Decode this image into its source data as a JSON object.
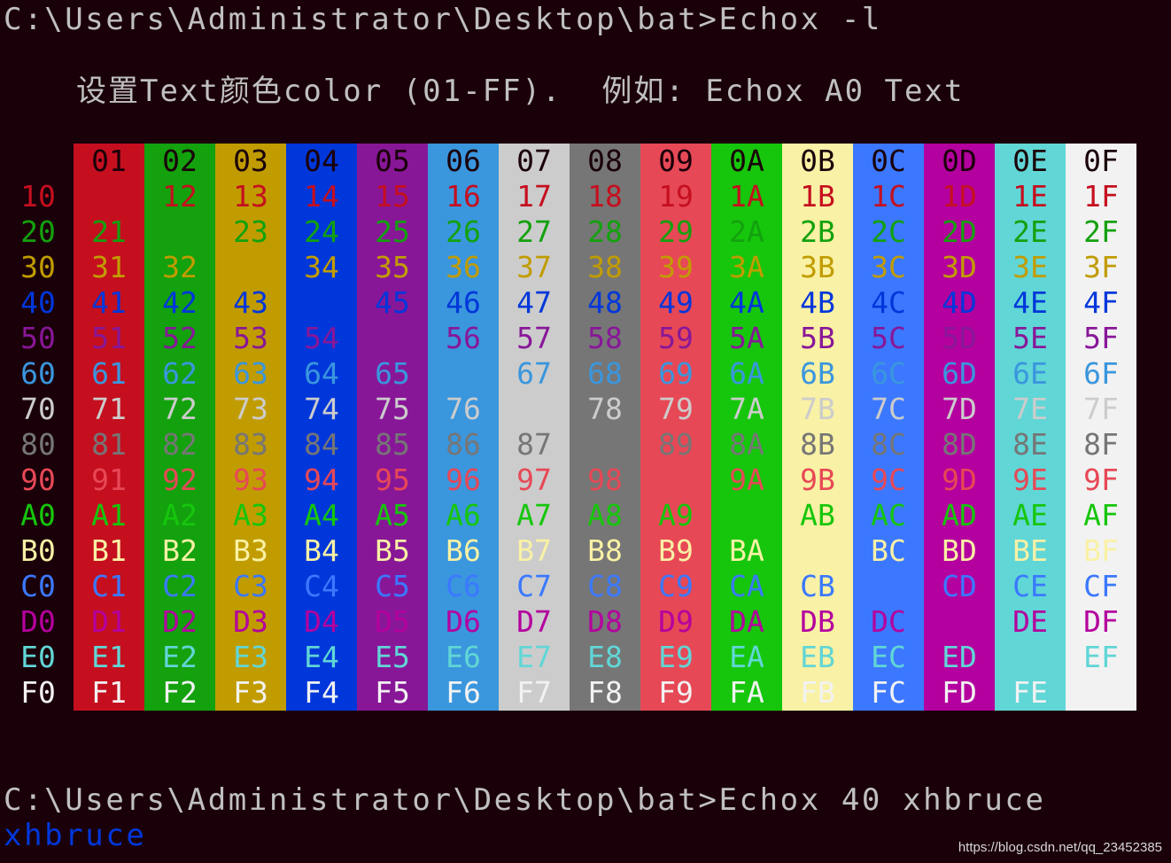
{
  "terminal": {
    "command_line": "C:\\Users\\Administrator\\Desktop\\bat>Echox -l",
    "help_text": "设置Text颜色color (01-FF).  例如: Echox A0 Text",
    "second_command_line": "C:\\Users\\Administrator\\Desktop\\bat>Echox 40 xhbruce",
    "output_text": "xhbruce",
    "output_color": "#0037da"
  },
  "palette": [
    "#1a0009",
    "#c50f1f",
    "#13a10e",
    "#c19c00",
    "#0037da",
    "#881798",
    "#3a96dd",
    "#cccccc",
    "#767676",
    "#e74856",
    "#16c60c",
    "#f9f1a5",
    "#3b78ff",
    "#b4009e",
    "#61d6d6",
    "#f2f2f2"
  ],
  "color_table": [
    [
      "",
      "01",
      "02",
      "03",
      "04",
      "05",
      "06",
      "07",
      "08",
      "09",
      "0A",
      "0B",
      "0C",
      "0D",
      "0E",
      "0F"
    ],
    [
      "10",
      "",
      "12",
      "13",
      "14",
      "15",
      "16",
      "17",
      "18",
      "19",
      "1A",
      "1B",
      "1C",
      "1D",
      "1E",
      "1F"
    ],
    [
      "20",
      "21",
      "",
      "23",
      "24",
      "25",
      "26",
      "27",
      "28",
      "29",
      "2A",
      "2B",
      "2C",
      "2D",
      "2E",
      "2F"
    ],
    [
      "30",
      "31",
      "32",
      "",
      "34",
      "35",
      "36",
      "37",
      "38",
      "39",
      "3A",
      "3B",
      "3C",
      "3D",
      "3E",
      "3F"
    ],
    [
      "40",
      "41",
      "42",
      "43",
      "",
      "45",
      "46",
      "47",
      "48",
      "49",
      "4A",
      "4B",
      "4C",
      "4D",
      "4E",
      "4F"
    ],
    [
      "50",
      "51",
      "52",
      "53",
      "54",
      "",
      "56",
      "57",
      "58",
      "59",
      "5A",
      "5B",
      "5C",
      "5D",
      "5E",
      "5F"
    ],
    [
      "60",
      "61",
      "62",
      "63",
      "64",
      "65",
      "",
      "67",
      "68",
      "69",
      "6A",
      "6B",
      "6C",
      "6D",
      "6E",
      "6F"
    ],
    [
      "70",
      "71",
      "72",
      "73",
      "74",
      "75",
      "76",
      "",
      "78",
      "79",
      "7A",
      "7B",
      "7C",
      "7D",
      "7E",
      "7F"
    ],
    [
      "80",
      "81",
      "82",
      "83",
      "84",
      "85",
      "86",
      "87",
      "",
      "89",
      "8A",
      "8B",
      "8C",
      "8D",
      "8E",
      "8F"
    ],
    [
      "90",
      "91",
      "92",
      "93",
      "94",
      "95",
      "96",
      "97",
      "98",
      "",
      "9A",
      "9B",
      "9C",
      "9D",
      "9E",
      "9F"
    ],
    [
      "A0",
      "A1",
      "A2",
      "A3",
      "A4",
      "A5",
      "A6",
      "A7",
      "A8",
      "A9",
      "",
      "AB",
      "AC",
      "AD",
      "AE",
      "AF"
    ],
    [
      "B0",
      "B1",
      "B2",
      "B3",
      "B4",
      "B5",
      "B6",
      "B7",
      "B8",
      "B9",
      "BA",
      "",
      "BC",
      "BD",
      "BE",
      "BF"
    ],
    [
      "C0",
      "C1",
      "C2",
      "C3",
      "C4",
      "C5",
      "C6",
      "C7",
      "C8",
      "C9",
      "CA",
      "CB",
      "",
      "CD",
      "CE",
      "CF"
    ],
    [
      "D0",
      "D1",
      "D2",
      "D3",
      "D4",
      "D5",
      "D6",
      "D7",
      "D8",
      "D9",
      "DA",
      "DB",
      "DC",
      "",
      "DE",
      "DF"
    ],
    [
      "E0",
      "E1",
      "E2",
      "E3",
      "E4",
      "E5",
      "E6",
      "E7",
      "E8",
      "E9",
      "EA",
      "EB",
      "EC",
      "ED",
      "",
      "EF"
    ],
    [
      "F0",
      "F1",
      "F2",
      "F3",
      "F4",
      "F5",
      "F6",
      "F7",
      "F8",
      "F9",
      "FA",
      "FB",
      "FC",
      "FD",
      "FE",
      ""
    ]
  ],
  "watermark": "https://blog.csdn.net/qq_23452385"
}
